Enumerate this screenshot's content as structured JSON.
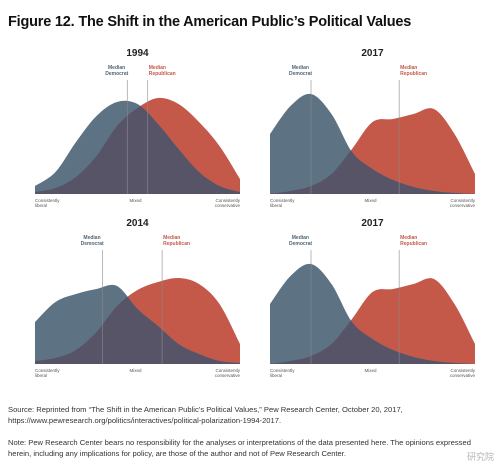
{
  "figure": {
    "title": "Figure 12. The Shift in the American Public’s Political Values"
  },
  "colors": {
    "democrat": "#5d7283",
    "republican": "#c4594a",
    "overlap": "#585468",
    "median_line": "#8a8a8a",
    "dem_label": "#4f6678",
    "rep_label": "#c4594a"
  },
  "chart_data": [
    {
      "type": "area",
      "title": "1994",
      "x_axis": {
        "left": "Consistently\nliberal",
        "center": "Mixed",
        "right": "Consistently\nconservative"
      },
      "xlim": [
        0,
        1
      ],
      "medians": {
        "democrat": {
          "label": "Median\nDemocrat",
          "x": 0.45
        },
        "republican": {
          "label": "Median\nRepublican",
          "x": 0.55
        }
      },
      "series": [
        {
          "name": "Democrats",
          "x": [
            0,
            0.1,
            0.2,
            0.3,
            0.4,
            0.5,
            0.6,
            0.7,
            0.8,
            0.9,
            1.0
          ],
          "values": [
            0.08,
            0.22,
            0.52,
            0.78,
            0.92,
            0.9,
            0.7,
            0.45,
            0.22,
            0.08,
            0.02
          ]
        },
        {
          "name": "Republicans",
          "x": [
            0,
            0.1,
            0.2,
            0.3,
            0.4,
            0.5,
            0.6,
            0.7,
            0.8,
            0.9,
            1.0
          ],
          "values": [
            0.02,
            0.06,
            0.17,
            0.38,
            0.68,
            0.86,
            0.96,
            0.9,
            0.72,
            0.48,
            0.15
          ]
        }
      ]
    },
    {
      "type": "area",
      "title": "2017",
      "x_axis": {
        "left": "Consistently\nliberal",
        "center": "Mixed",
        "right": "Consistently\nconservative"
      },
      "xlim": [
        0,
        1
      ],
      "medians": {
        "democrat": {
          "label": "Median\nDemocrat",
          "x": 0.2
        },
        "republican": {
          "label": "Median\nRepublican",
          "x": 0.63
        }
      },
      "series": [
        {
          "name": "Democrats",
          "x": [
            0,
            0.1,
            0.2,
            0.3,
            0.4,
            0.5,
            0.6,
            0.7,
            0.8,
            0.9,
            1.0
          ],
          "values": [
            0.6,
            0.88,
            1.0,
            0.8,
            0.42,
            0.25,
            0.14,
            0.07,
            0.03,
            0.01,
            0.0
          ]
        },
        {
          "name": "Republicans",
          "x": [
            0,
            0.1,
            0.2,
            0.3,
            0.4,
            0.5,
            0.6,
            0.7,
            0.8,
            0.9,
            1.0
          ],
          "values": [
            0.0,
            0.03,
            0.08,
            0.2,
            0.45,
            0.72,
            0.75,
            0.8,
            0.85,
            0.6,
            0.2
          ]
        }
      ]
    },
    {
      "type": "area",
      "title": "2014",
      "x_axis": {
        "left": "Consistently\nliberal",
        "center": "Mixed",
        "right": "Consistently\nconservative"
      },
      "xlim": [
        0,
        1
      ],
      "medians": {
        "democrat": {
          "label": "Median\nDemocrat",
          "x": 0.33
        },
        "republican": {
          "label": "Median\nRepublican",
          "x": 0.62
        }
      },
      "series": [
        {
          "name": "Democrats",
          "x": [
            0,
            0.1,
            0.2,
            0.3,
            0.4,
            0.5,
            0.6,
            0.7,
            0.8,
            0.9,
            1.0
          ],
          "values": [
            0.42,
            0.62,
            0.7,
            0.75,
            0.78,
            0.55,
            0.38,
            0.2,
            0.1,
            0.03,
            0.01
          ]
        },
        {
          "name": "Republicans",
          "x": [
            0,
            0.1,
            0.2,
            0.3,
            0.4,
            0.5,
            0.6,
            0.7,
            0.8,
            0.9,
            1.0
          ],
          "values": [
            0.03,
            0.06,
            0.14,
            0.32,
            0.58,
            0.74,
            0.82,
            0.86,
            0.8,
            0.6,
            0.2
          ]
        }
      ]
    },
    {
      "type": "area",
      "title": "2017",
      "x_axis": {
        "left": "Consistently\nliberal",
        "center": "Mixed",
        "right": "Consistently\nconservative"
      },
      "xlim": [
        0,
        1
      ],
      "medians": {
        "democrat": {
          "label": "Median\nDemocrat",
          "x": 0.2
        },
        "republican": {
          "label": "Median\nRepublican",
          "x": 0.63
        }
      },
      "series": [
        {
          "name": "Democrats",
          "x": [
            0,
            0.1,
            0.2,
            0.3,
            0.4,
            0.5,
            0.6,
            0.7,
            0.8,
            0.9,
            1.0
          ],
          "values": [
            0.6,
            0.88,
            1.0,
            0.8,
            0.42,
            0.25,
            0.14,
            0.07,
            0.03,
            0.01,
            0.0
          ]
        },
        {
          "name": "Republicans",
          "x": [
            0,
            0.1,
            0.2,
            0.3,
            0.4,
            0.5,
            0.6,
            0.7,
            0.8,
            0.9,
            1.0
          ],
          "values": [
            0.0,
            0.03,
            0.08,
            0.2,
            0.45,
            0.72,
            0.75,
            0.8,
            0.85,
            0.6,
            0.2
          ]
        }
      ]
    }
  ],
  "source": "Source: Reprinted from “The Shift in the American Public’s Political Values,” Pew Research Center, October 20, 2017, https://www.pewresearch.org/politics/interactives/political-polarization-1994-2017.",
  "note": "Note: Pew Research Center bears no responsibility for the analyses or interpretations of the data presented here. The opinions expressed herein, including any implications for policy, are those of the author and not of Pew Research Center.",
  "watermark": "研究院"
}
